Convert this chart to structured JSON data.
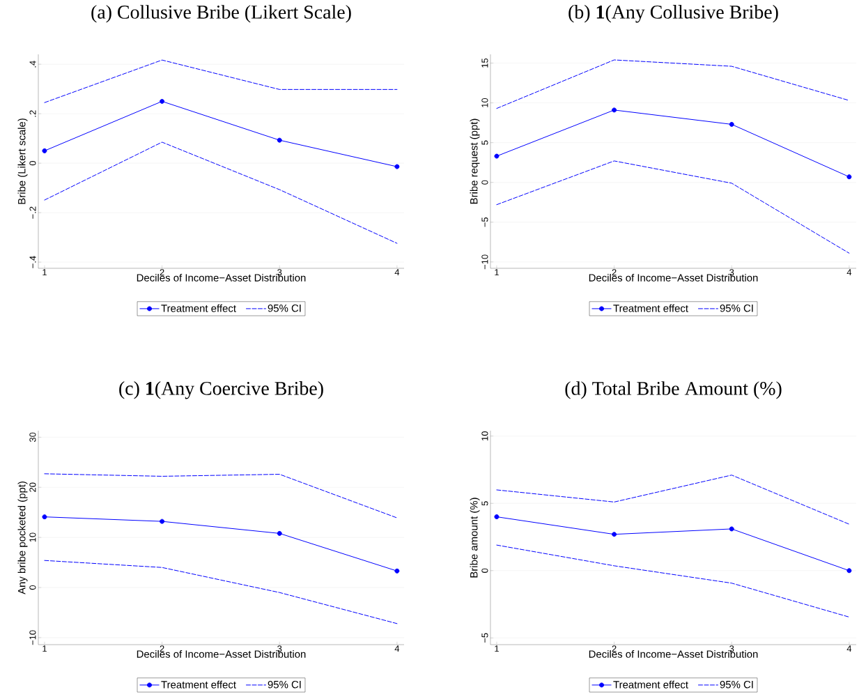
{
  "chart_data": [
    {
      "type": "line",
      "title": "(a) Collusive Bribe (Likert Scale)",
      "xlabel": "Deciles of Income−Asset Distribution",
      "ylabel": "Bribe (Likert scale)",
      "x": [
        1,
        2,
        3,
        4
      ],
      "xlim": [
        0.947,
        4.06
      ],
      "xticks": [
        1,
        2,
        3,
        4
      ],
      "ylim": [
        -0.425,
        0.44
      ],
      "yticks": [
        {
          "value": -0.4,
          "label": "−.4"
        },
        {
          "value": -0.2,
          "label": "−.2"
        },
        0,
        {
          "value": 0.2,
          "label": ".2"
        },
        {
          "value": 0.4,
          "label": ".4"
        }
      ],
      "grid": "y",
      "legend": "bottom",
      "series": [
        {
          "name": "Treatment effect",
          "color": "#0000ff",
          "marker": "circle",
          "line_style": "solid",
          "values": [
            0.05,
            0.25,
            0.093,
            -0.014
          ]
        },
        {
          "name": "95% CI",
          "color": "#0000ff",
          "marker": "none",
          "line_style": "dashed",
          "values": [
            0.245,
            0.417,
            0.298,
            0.298
          ]
        },
        {
          "color": "#0000ff",
          "marker": "none",
          "line_style": "dashed",
          "values": [
            -0.149,
            0.085,
            -0.107,
            -0.324
          ]
        }
      ]
    },
    {
      "type": "line",
      "title": "(b) **1**(Any Collusive Bribe)",
      "xlabel": "Deciles of Income−Asset Distribution",
      "ylabel": "Bribe request (ppt)",
      "x": [
        1,
        2,
        3,
        4
      ],
      "xlim": [
        0.947,
        4.06
      ],
      "xticks": [
        1,
        2,
        3,
        4
      ],
      "ylim": [
        -10.8,
        16.1
      ],
      "yticks": [
        {
          "value": -10,
          "label": "−10"
        },
        {
          "value": -5,
          "label": "−5"
        },
        0,
        5,
        10,
        15
      ],
      "grid": "y",
      "legend": "bottom",
      "series": [
        {
          "name": "Treatment effect",
          "color": "#0000ff",
          "marker": "circle",
          "line_style": "solid",
          "values": [
            3.3,
            9.1,
            7.3,
            0.7
          ]
        },
        {
          "name": "95% CI",
          "color": "#0000ff",
          "marker": "none",
          "line_style": "dashed",
          "values": [
            9.3,
            15.4,
            14.6,
            10.3
          ]
        },
        {
          "color": "#0000ff",
          "marker": "none",
          "line_style": "dashed",
          "values": [
            -2.8,
            2.7,
            -0.1,
            -8.9
          ]
        }
      ]
    },
    {
      "type": "line",
      "title": "(c) **1**(Any Coercive Bribe)",
      "xlabel": "Deciles of Income−Asset Distribution",
      "ylabel": "Any bribe pocketed (ppt)",
      "x": [
        1,
        2,
        3,
        4
      ],
      "xlim": [
        0.947,
        4.06
      ],
      "xticks": [
        1,
        2,
        3,
        4
      ],
      "ylim": [
        -11.4,
        31.3
      ],
      "yticks": [
        {
          "value": -10,
          "label": "−10"
        },
        0,
        10,
        20,
        30
      ],
      "grid": "y",
      "legend": "bottom",
      "series": [
        {
          "name": "Treatment effect",
          "color": "#0000ff",
          "marker": "circle",
          "line_style": "solid",
          "values": [
            14.1,
            13.2,
            10.8,
            3.3
          ]
        },
        {
          "name": "95% CI",
          "color": "#0000ff",
          "marker": "none",
          "line_style": "dashed",
          "values": [
            22.7,
            22.2,
            22.6,
            13.9
          ]
        },
        {
          "color": "#0000ff",
          "marker": "none",
          "line_style": "dashed",
          "values": [
            5.4,
            4.0,
            -1.0,
            -7.2
          ]
        }
      ]
    },
    {
      "type": "line",
      "title": "(d) Total Bribe Amount (%)",
      "xlabel": "Deciles of Income−Asset Distribution",
      "ylabel": "Bribe amount (%)",
      "x": [
        1,
        2,
        3,
        4
      ],
      "xlim": [
        0.947,
        4.06
      ],
      "xticks": [
        1,
        2,
        3,
        4
      ],
      "ylim": [
        -5.5,
        10.4
      ],
      "yticks": [
        {
          "value": -5,
          "label": "−5"
        },
        0,
        5,
        10
      ],
      "grid": "y",
      "legend": "bottom",
      "series": [
        {
          "name": "Treatment effect",
          "color": "#0000ff",
          "marker": "circle",
          "line_style": "solid",
          "values": [
            4.0,
            2.7,
            3.1,
            0.0
          ]
        },
        {
          "name": "95% CI",
          "color": "#0000ff",
          "marker": "none",
          "line_style": "dashed",
          "values": [
            6.0,
            5.1,
            7.1,
            3.45
          ]
        },
        {
          "color": "#0000ff",
          "marker": "none",
          "line_style": "dashed",
          "values": [
            1.9,
            0.36,
            -0.93,
            -3.45
          ]
        }
      ]
    }
  ]
}
